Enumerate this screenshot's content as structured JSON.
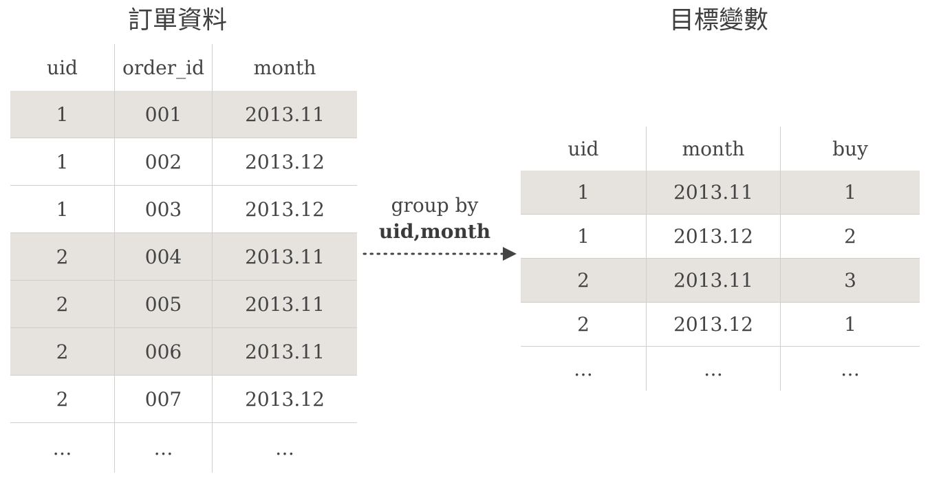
{
  "left_title": "訂單資料",
  "right_title": "目標變數",
  "orders_table": {
    "columns": [
      "uid",
      "order_id",
      "month"
    ],
    "rows": [
      {
        "uid": "1",
        "order_id": "001",
        "month": "2013.11",
        "shaded": true
      },
      {
        "uid": "1",
        "order_id": "002",
        "month": "2013.12",
        "shaded": false
      },
      {
        "uid": "1",
        "order_id": "003",
        "month": "2013.12",
        "shaded": false
      },
      {
        "uid": "2",
        "order_id": "004",
        "month": "2013.11",
        "shaded": true
      },
      {
        "uid": "2",
        "order_id": "005",
        "month": "2013.11",
        "shaded": true
      },
      {
        "uid": "2",
        "order_id": "006",
        "month": "2013.11",
        "shaded": true
      },
      {
        "uid": "2",
        "order_id": "007",
        "month": "2013.12",
        "shaded": false
      },
      {
        "uid": "…",
        "order_id": "…",
        "month": "…",
        "shaded": false
      }
    ]
  },
  "operation": {
    "line1": "group by",
    "keys": "uid,month"
  },
  "target_table": {
    "columns": [
      "uid",
      "month",
      "buy"
    ],
    "rows": [
      {
        "uid": "1",
        "month": "2013.11",
        "buy": "1",
        "shaded": true
      },
      {
        "uid": "1",
        "month": "2013.12",
        "buy": "2",
        "shaded": false
      },
      {
        "uid": "2",
        "month": "2013.11",
        "buy": "3",
        "shaded": true
      },
      {
        "uid": "2",
        "month": "2013.12",
        "buy": "1",
        "shaded": false
      },
      {
        "uid": "…",
        "month": "…",
        "buy": "…",
        "shaded": false
      }
    ]
  },
  "colors": {
    "shade": "#e6e3df",
    "grid": "#d0ceca",
    "text": "#444444",
    "arrow": "#444444"
  }
}
